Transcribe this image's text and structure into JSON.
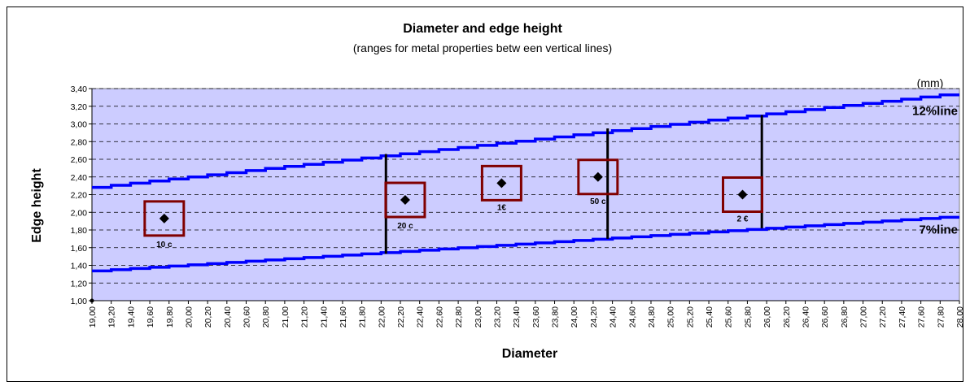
{
  "chart_data": {
    "type": "line",
    "title": "Diameter and edge height",
    "subtitle": "(ranges for metal properties betw een vertical lines)",
    "unit": "(mm)",
    "xlabel": "Diameter",
    "ylabel": "Edge height",
    "xlim": [
      19.0,
      28.0
    ],
    "ylim": [
      1.0,
      3.4
    ],
    "y_ticks": [
      "1,00",
      "1,20",
      "1,40",
      "1,60",
      "1,80",
      "2,00",
      "2,20",
      "2,40",
      "2,60",
      "2,80",
      "3,00",
      "3,20",
      "3,40"
    ],
    "x_ticks": [
      "19,00",
      "19,20",
      "19,40",
      "19,60",
      "19,80",
      "20,00",
      "20,20",
      "20,40",
      "20,60",
      "20,80",
      "21,00",
      "21,20",
      "21,40",
      "21,60",
      "21,80",
      "22,00",
      "22,20",
      "22,40",
      "22,60",
      "22,80",
      "23,00",
      "23,20",
      "23,40",
      "23,60",
      "23,80",
      "24,00",
      "24,20",
      "24,40",
      "24,60",
      "24,80",
      "25,00",
      "25,20",
      "25,40",
      "25,60",
      "25,80",
      "26,00",
      "26,20",
      "26,40",
      "26,60",
      "26,80",
      "27,00",
      "27,20",
      "27,40",
      "27,60",
      "27,80",
      "28,00"
    ],
    "grid": true,
    "series": [
      {
        "name": "12%line",
        "color": "#0000ff",
        "x": [
          19.0,
          28.0
        ],
        "y": [
          2.27,
          3.34
        ]
      },
      {
        "name": "7%line",
        "color": "#0000ff",
        "x": [
          19.0,
          28.0
        ],
        "y": [
          1.33,
          1.95
        ]
      }
    ],
    "vertical_lines": [
      {
        "x": 22.05,
        "y_from": 1.53,
        "y_to": 2.66
      },
      {
        "x": 24.35,
        "y_from": 1.7,
        "y_to": 2.95
      },
      {
        "x": 25.95,
        "y_from": 1.82,
        "y_to": 3.1
      }
    ],
    "points": [
      {
        "label": "10 c",
        "x": 19.75,
        "y": 1.93
      },
      {
        "label": "20 c",
        "x": 22.25,
        "y": 2.14
      },
      {
        "label": "1€",
        "x": 23.25,
        "y": 2.33
      },
      {
        "label": "50 c",
        "x": 24.25,
        "y": 2.4
      },
      {
        "label": "2 €",
        "x": 25.75,
        "y": 2.2
      }
    ],
    "colors": {
      "plot_background": "#ccccff",
      "line": "#0000ff",
      "box": "#800000",
      "point": "#000000"
    }
  }
}
